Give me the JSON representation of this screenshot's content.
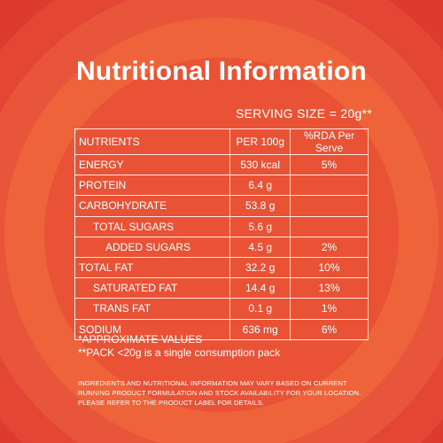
{
  "title": "Nutritional Information",
  "serving_size": "SERVING SIZE = 20g**",
  "table": {
    "headers": [
      "NUTRIENTS",
      "PER 100g",
      "%RDA Per Serve"
    ],
    "rows": [
      {
        "nutrient": "ENERGY",
        "per100g": "530 kcal",
        "rda": "5%"
      },
      {
        "nutrient": "PROTEIN",
        "per100g": "6.4 g",
        "rda": ""
      },
      {
        "nutrient": "CARBOHYDRATE",
        "per100g": "53.8 g",
        "rda": ""
      },
      {
        "nutrient": "TOTAL SUGARS",
        "per100g": "5.6 g",
        "rda": ""
      },
      {
        "nutrient": "ADDED SUGARS",
        "per100g": "4.5 g",
        "rda": "2%"
      },
      {
        "nutrient": "TOTAL FAT",
        "per100g": "32.2 g",
        "rda": "10%"
      },
      {
        "nutrient": "SATURATED FAT",
        "per100g": "14.4 g",
        "rda": "13%"
      },
      {
        "nutrient": "TRANS FAT",
        "per100g": "0.1 g",
        "rda": "1%"
      },
      {
        "nutrient": "SODIUM",
        "per100g": "636 mg",
        "rda": "6%"
      }
    ]
  },
  "notes": {
    "approx": "*APPROXIMATE VALUES",
    "pack": "**PACK <20g is a single consumption pack"
  },
  "disclaimer": "INGREDIENTS AND NUTRITIONAL INFORMATION MAY VARY BASED ON CURRENT RUNNING PRODUCT FORMULATION AND STOCK AVAILABILITY FOR YOUR LOCATION. PLEASE REFER TO THE PRODUCT LABEL FOR DETAILS."
}
